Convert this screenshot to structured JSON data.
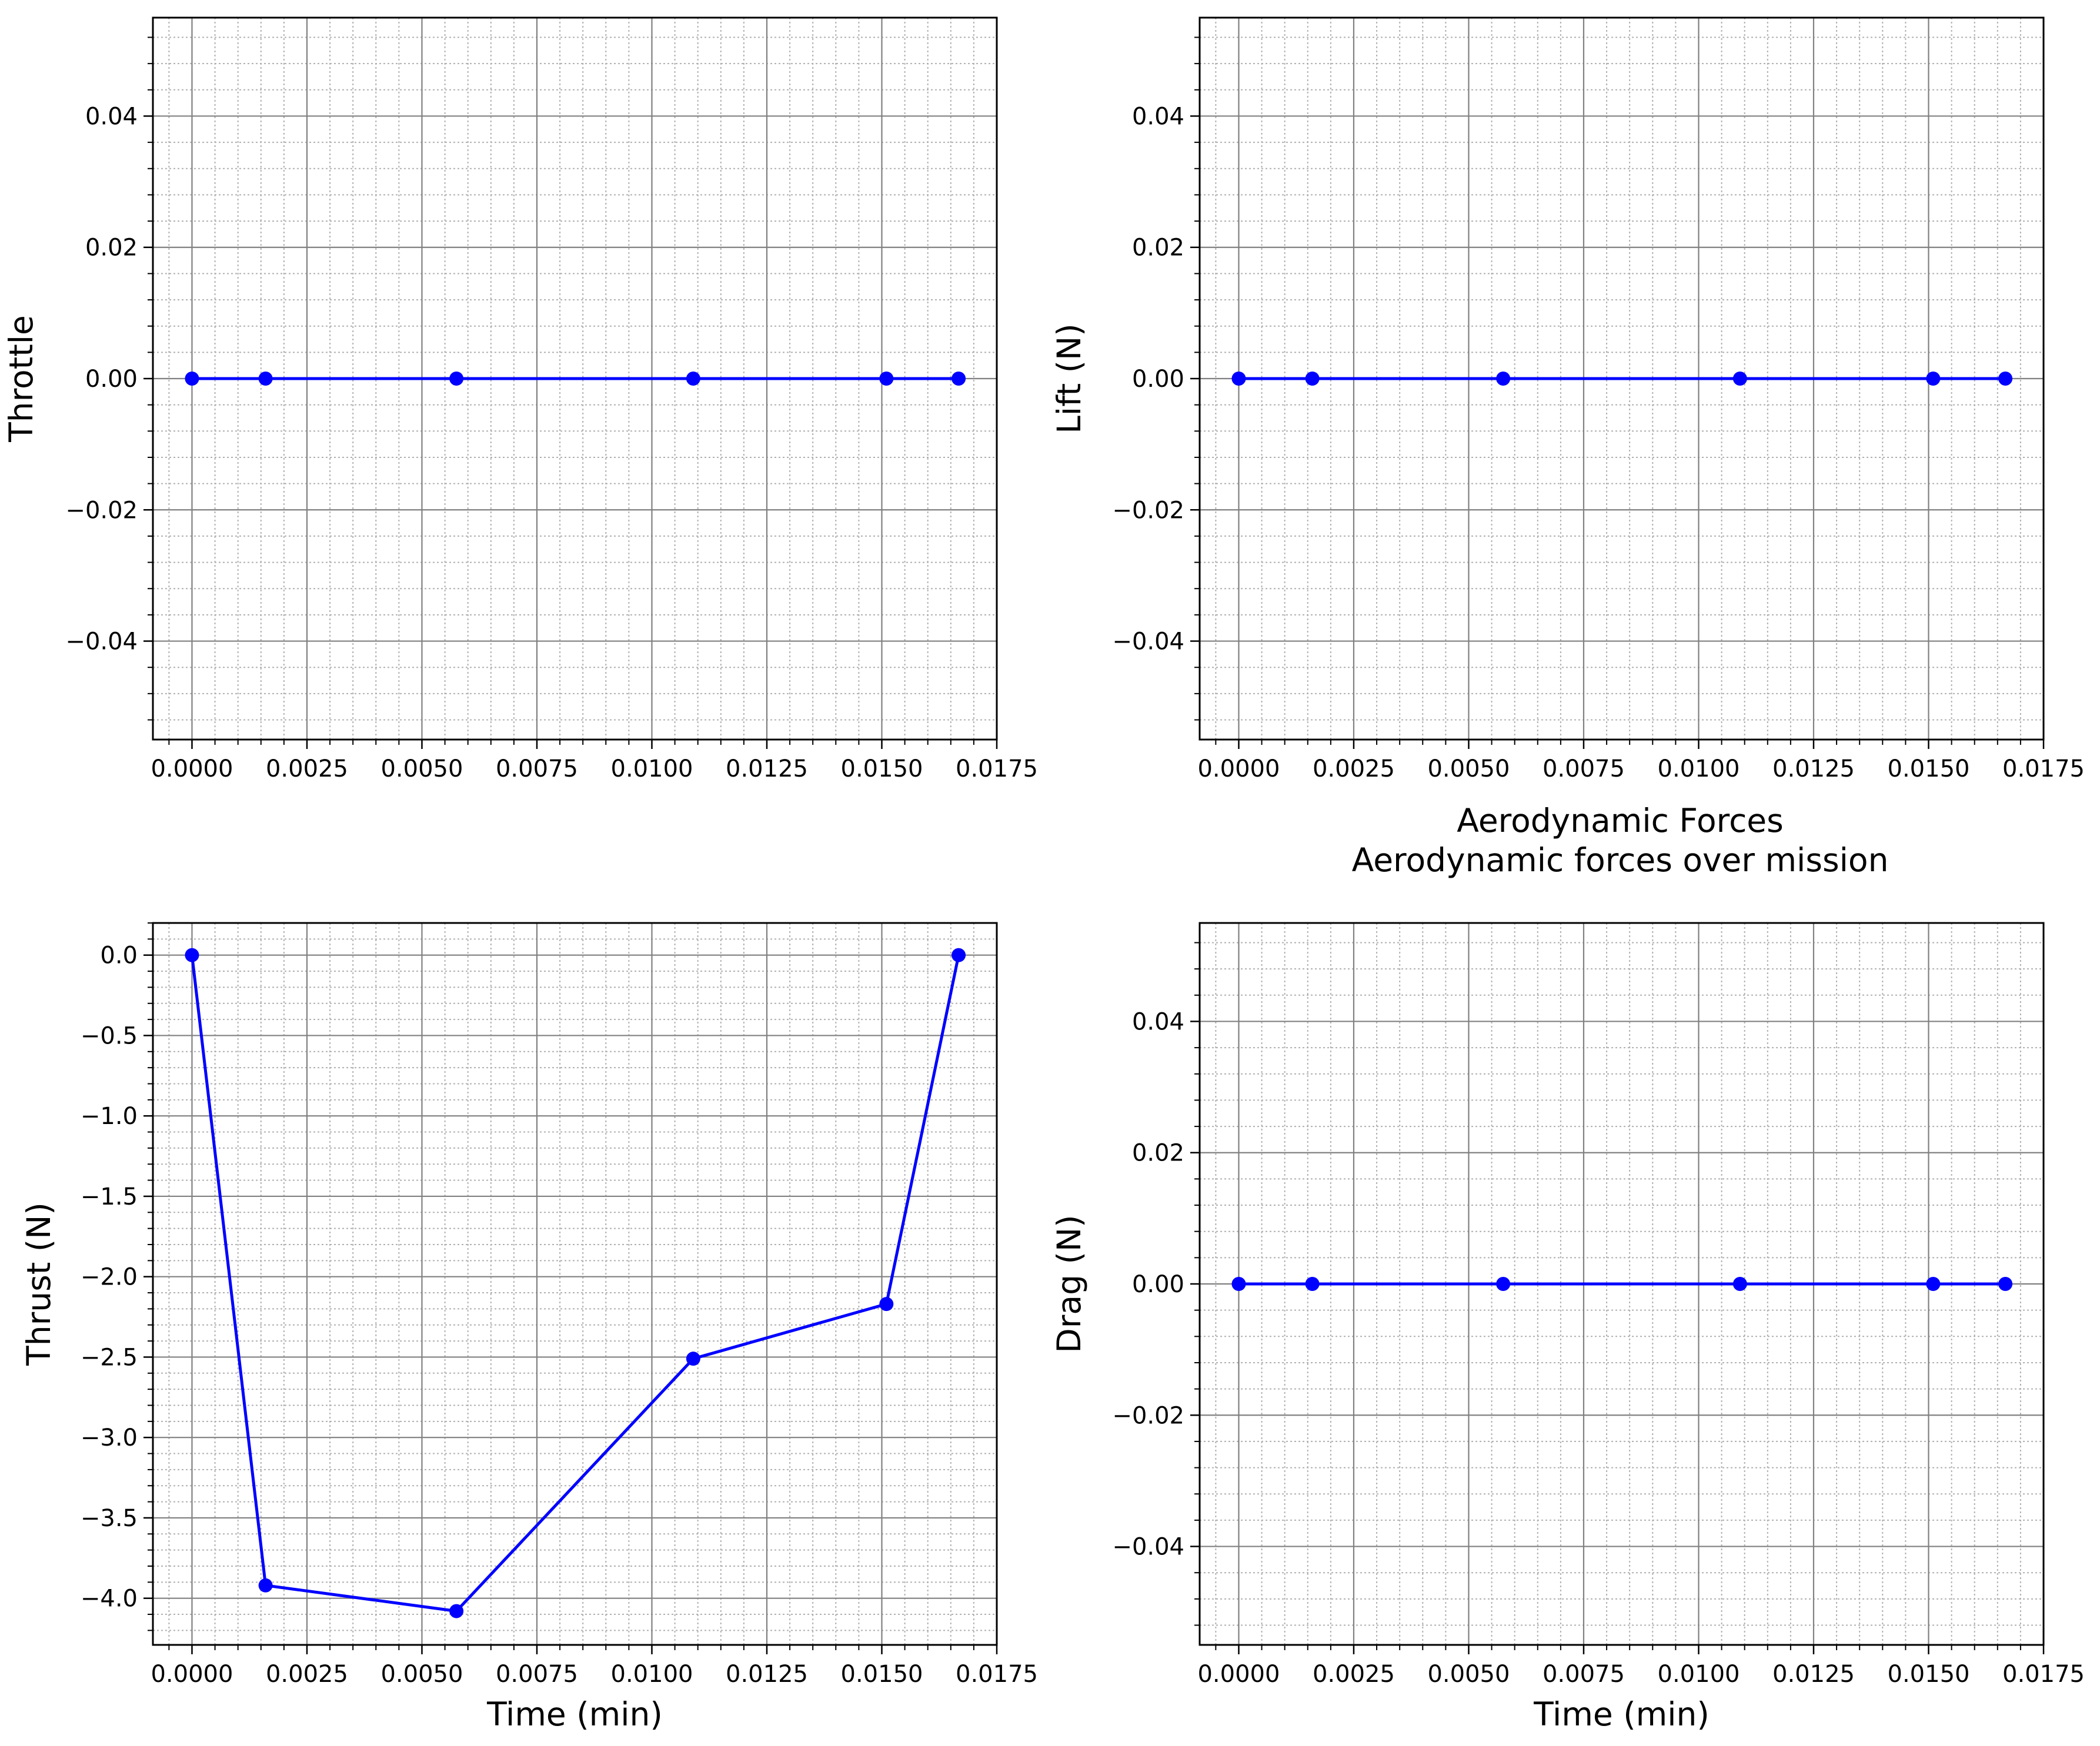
{
  "figure": {
    "title": "Aerodynamic Forces",
    "subtitle": "Aerodynamic forces over mission"
  },
  "chart_data": [
    {
      "type": "line",
      "ylabel": "Throttle",
      "xlabel": "",
      "xlim": [
        -0.00085,
        0.0175
      ],
      "ylim": [
        -0.055,
        0.055
      ],
      "xticks": [
        0.0,
        0.0025,
        0.005,
        0.0075,
        0.01,
        0.0125,
        0.015,
        0.0175
      ],
      "xtick_labels": [
        "0.0000",
        "0.0025",
        "0.0050",
        "0.0075",
        "0.0100",
        "0.0125",
        "0.0150",
        "0.0175"
      ],
      "yticks": [
        -0.04,
        -0.02,
        0.0,
        0.02,
        0.04
      ],
      "ytick_labels": [
        "−0.04",
        "−0.02",
        "0.00",
        "0.02",
        "0.04"
      ],
      "grid": true,
      "color": "#0000ff",
      "x": [
        0.0,
        0.0016,
        0.00575,
        0.0109,
        0.0151,
        0.01667
      ],
      "y": [
        0.0,
        0.0,
        0.0,
        0.0,
        0.0,
        0.0
      ]
    },
    {
      "type": "line",
      "ylabel": "Lift (N)",
      "xlabel": "",
      "xlim": [
        -0.00085,
        0.0175
      ],
      "ylim": [
        -0.055,
        0.055
      ],
      "xticks": [
        0.0,
        0.0025,
        0.005,
        0.0075,
        0.01,
        0.0125,
        0.015,
        0.0175
      ],
      "xtick_labels": [
        "0.0000",
        "0.0025",
        "0.0050",
        "0.0075",
        "0.0100",
        "0.0125",
        "0.0150",
        "0.0175"
      ],
      "yticks": [
        -0.04,
        -0.02,
        0.0,
        0.02,
        0.04
      ],
      "ytick_labels": [
        "−0.04",
        "−0.02",
        "0.00",
        "0.02",
        "0.04"
      ],
      "grid": true,
      "color": "#0000ff",
      "x": [
        0.0,
        0.0016,
        0.00575,
        0.0109,
        0.0151,
        0.01667
      ],
      "y": [
        0.0,
        0.0,
        0.0,
        0.0,
        0.0,
        0.0
      ]
    },
    {
      "type": "line",
      "ylabel": "Thrust (N)",
      "xlabel": "Time (min)",
      "xlim": [
        -0.00085,
        0.0175
      ],
      "ylim": [
        -4.29,
        0.2
      ],
      "xticks": [
        0.0,
        0.0025,
        0.005,
        0.0075,
        0.01,
        0.0125,
        0.015,
        0.0175
      ],
      "xtick_labels": [
        "0.0000",
        "0.0025",
        "0.0050",
        "0.0075",
        "0.0100",
        "0.0125",
        "0.0150",
        "0.0175"
      ],
      "yticks": [
        -4.0,
        -3.5,
        -3.0,
        -2.5,
        -2.0,
        -1.5,
        -1.0,
        -0.5,
        0.0
      ],
      "ytick_labels": [
        "−4.0",
        "−3.5",
        "−3.0",
        "−2.5",
        "−2.0",
        "−1.5",
        "−1.0",
        "−0.5",
        "0.0"
      ],
      "grid": true,
      "color": "#0000ff",
      "x": [
        0.0,
        0.0016,
        0.00575,
        0.0109,
        0.0151,
        0.01667
      ],
      "y": [
        0.0,
        -3.92,
        -4.08,
        -2.51,
        -2.17,
        0.0
      ]
    },
    {
      "type": "line",
      "ylabel": "Drag (N)",
      "xlabel": "Time (min)",
      "xlim": [
        -0.00085,
        0.0175
      ],
      "ylim": [
        -0.055,
        0.055
      ],
      "xticks": [
        0.0,
        0.0025,
        0.005,
        0.0075,
        0.01,
        0.0125,
        0.015,
        0.0175
      ],
      "xtick_labels": [
        "0.0000",
        "0.0025",
        "0.0050",
        "0.0075",
        "0.0100",
        "0.0125",
        "0.0150",
        "0.0175"
      ],
      "yticks": [
        -0.04,
        -0.02,
        0.0,
        0.02,
        0.04
      ],
      "ytick_labels": [
        "−0.04",
        "−0.02",
        "0.00",
        "0.02",
        "0.04"
      ],
      "grid": true,
      "color": "#0000ff",
      "x": [
        0.0,
        0.0016,
        0.00575,
        0.0109,
        0.0151,
        0.01667
      ],
      "y": [
        0.0,
        0.0,
        0.0,
        0.0,
        0.0,
        0.0
      ]
    }
  ]
}
